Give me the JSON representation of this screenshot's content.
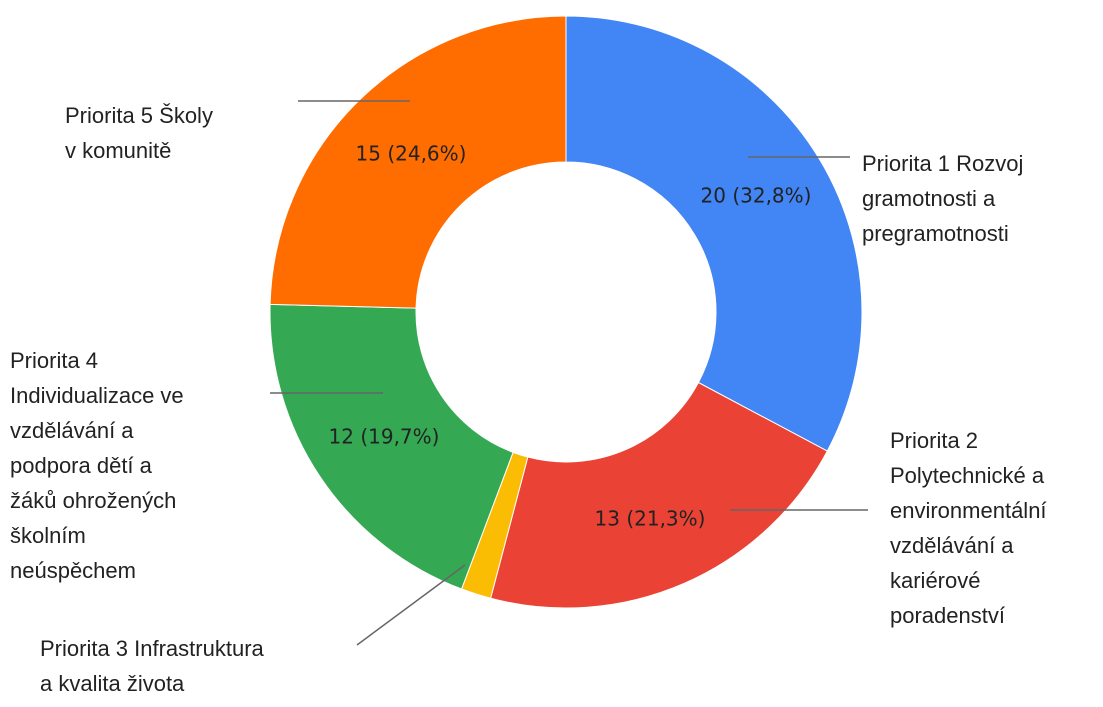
{
  "chart_data": {
    "type": "donut",
    "categories": [
      "Priorita 1 Rozvoj\ngramotnosti a\npregramotnosti",
      "Priorita 2\nPolytechnické a\nenvironmentální\nvzdělávání a\nkariérové\nporadenství",
      "Priorita 3 Infrastruktura\na kvalita života",
      "Priorita 4\nIndividualizace ve\nvzdělávání a\npodpora dětí a\nžáků ohrožených\nškolním\nneúspěchem",
      "Priorita 5 Školy\nv komunitě"
    ],
    "values": [
      20,
      13,
      1,
      12,
      15
    ],
    "value_labels": [
      "20 (32,8%)",
      "13 (21,3%)",
      null,
      "12 (19,7%)",
      "15 (24,6%)"
    ],
    "colors": [
      "#4285f4",
      "#ea4335",
      "#fbbc04",
      "#34a853",
      "#ff6d01"
    ]
  }
}
